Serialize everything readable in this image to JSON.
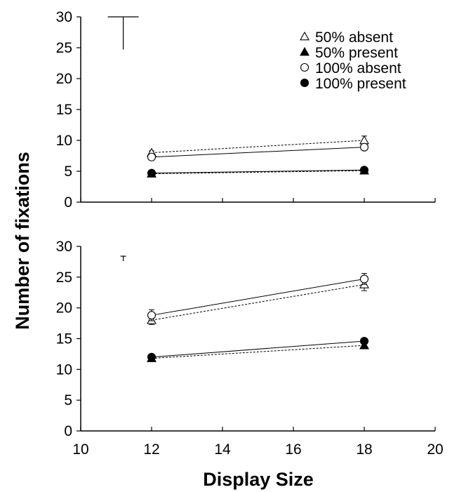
{
  "chart_data": {
    "type": "line",
    "xlabel": "Display Size",
    "ylabel": "Number of fixations",
    "xlim": [
      10,
      20
    ],
    "x_ticks": [
      "10",
      "12",
      "14",
      "16",
      "18",
      "20"
    ],
    "ylim": [
      0,
      30
    ],
    "y_ticks": [
      "0",
      "5",
      "10",
      "15",
      "20",
      "25",
      "30"
    ],
    "legend_position": "top-right",
    "legend": [
      {
        "label": "50% absent",
        "marker": "triangle-open"
      },
      {
        "label": "50% present",
        "marker": "triangle-filled"
      },
      {
        "label": "100% absent",
        "marker": "circle-open"
      },
      {
        "label": "100% present",
        "marker": "circle-filled"
      }
    ],
    "panels": [
      {
        "name": "top",
        "error_scale": {
          "x": 11.2,
          "y_top": 30,
          "y_bottom": 24.7
        },
        "series": [
          {
            "name": "50% absent",
            "marker": "triangle-open",
            "line": "dashed",
            "x": [
              12,
              18
            ],
            "y": [
              8.0,
              10.0
            ],
            "err": [
              0.3,
              0.7
            ]
          },
          {
            "name": "50% present",
            "marker": "triangle-filled",
            "line": "dashed",
            "x": [
              12,
              18
            ],
            "y": [
              4.6,
              5.1
            ],
            "err": [
              0,
              0
            ]
          },
          {
            "name": "100% absent",
            "marker": "circle-open",
            "line": "solid",
            "x": [
              12,
              18
            ],
            "y": [
              7.3,
              8.9
            ],
            "err": [
              0.3,
              0.3
            ]
          },
          {
            "name": "100% present",
            "marker": "circle-filled",
            "line": "solid",
            "x": [
              12,
              18
            ],
            "y": [
              4.7,
              5.2
            ],
            "err": [
              0,
              0
            ]
          }
        ]
      },
      {
        "name": "bottom",
        "error_scale": {
          "x": 11.2,
          "y_top": 28.4,
          "y_bottom": 27.6
        },
        "series": [
          {
            "name": "50% absent",
            "marker": "triangle-open",
            "line": "dashed",
            "x": [
              12,
              18
            ],
            "y": [
              18.0,
              23.8
            ],
            "err": [
              0.7,
              1.0
            ]
          },
          {
            "name": "50% present",
            "marker": "triangle-filled",
            "line": "dashed",
            "x": [
              12,
              18
            ],
            "y": [
              11.8,
              13.9
            ],
            "err": [
              0.3,
              0.4
            ]
          },
          {
            "name": "100% absent",
            "marker": "circle-open",
            "line": "solid",
            "x": [
              12,
              18
            ],
            "y": [
              18.8,
              24.7
            ],
            "err": [
              0.9,
              0.9
            ]
          },
          {
            "name": "100% present",
            "marker": "circle-filled",
            "line": "solid",
            "x": [
              12,
              18
            ],
            "y": [
              12.0,
              14.6
            ],
            "err": [
              0.3,
              0.3
            ]
          }
        ]
      }
    ]
  },
  "colors": {
    "axis": "#000000",
    "marker_stroke": "#000000",
    "marker_fill_open": "#ffffff",
    "marker_fill_filled": "#000000"
  }
}
